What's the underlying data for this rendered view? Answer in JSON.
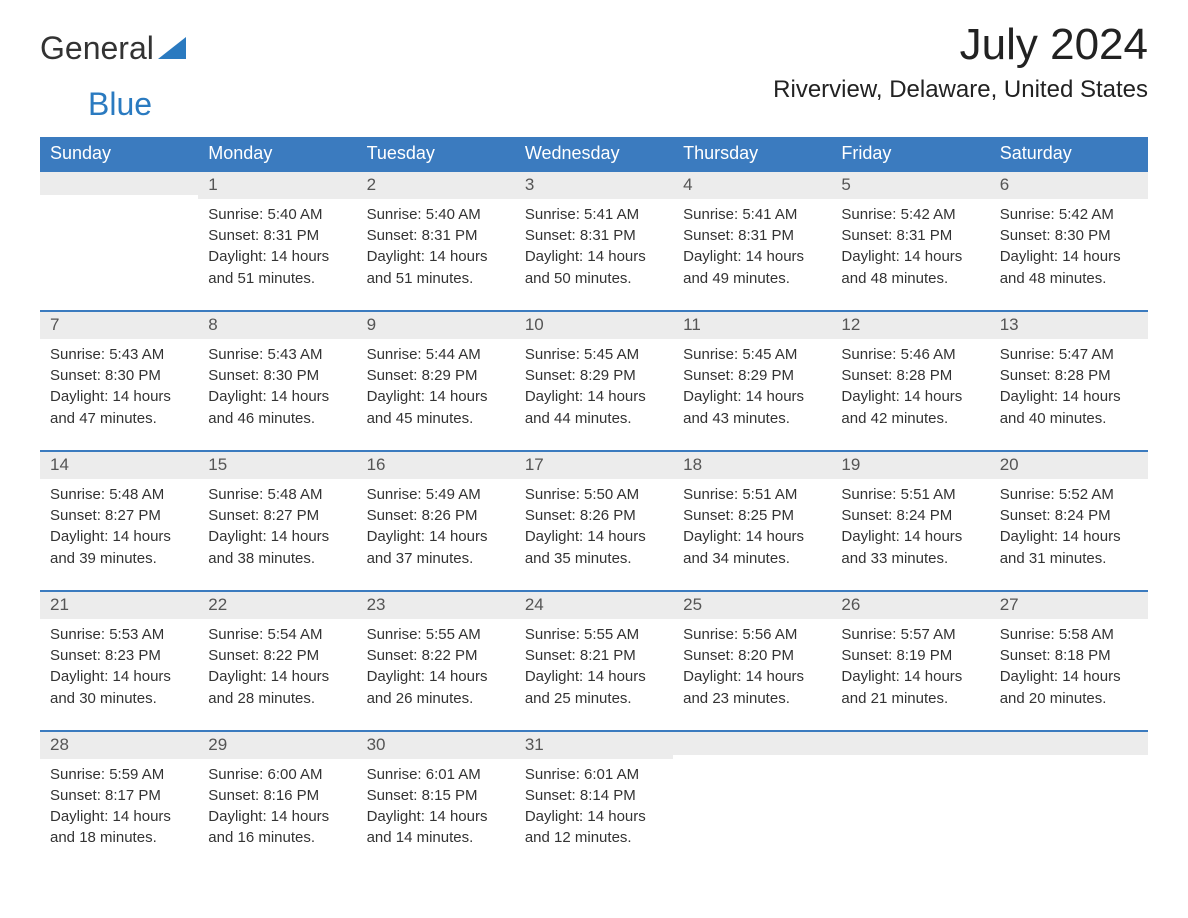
{
  "logo": {
    "word1": "General",
    "word2": "Blue",
    "color_primary": "#2a7ac0",
    "color_text": "#333333"
  },
  "month_title": "July 2024",
  "location": "Riverview, Delaware, United States",
  "colors": {
    "header_bg": "#3b7bbf",
    "header_text": "#ffffff",
    "daynum_bg": "#ececec",
    "daynum_border": "#3b7bbf",
    "body_text": "#333333",
    "background": "#ffffff"
  },
  "weekdays": [
    "Sunday",
    "Monday",
    "Tuesday",
    "Wednesday",
    "Thursday",
    "Friday",
    "Saturday"
  ],
  "weeks": [
    [
      null,
      {
        "n": "1",
        "sunrise": "Sunrise: 5:40 AM",
        "sunset": "Sunset: 8:31 PM",
        "day1": "Daylight: 14 hours",
        "day2": "and 51 minutes."
      },
      {
        "n": "2",
        "sunrise": "Sunrise: 5:40 AM",
        "sunset": "Sunset: 8:31 PM",
        "day1": "Daylight: 14 hours",
        "day2": "and 51 minutes."
      },
      {
        "n": "3",
        "sunrise": "Sunrise: 5:41 AM",
        "sunset": "Sunset: 8:31 PM",
        "day1": "Daylight: 14 hours",
        "day2": "and 50 minutes."
      },
      {
        "n": "4",
        "sunrise": "Sunrise: 5:41 AM",
        "sunset": "Sunset: 8:31 PM",
        "day1": "Daylight: 14 hours",
        "day2": "and 49 minutes."
      },
      {
        "n": "5",
        "sunrise": "Sunrise: 5:42 AM",
        "sunset": "Sunset: 8:31 PM",
        "day1": "Daylight: 14 hours",
        "day2": "and 48 minutes."
      },
      {
        "n": "6",
        "sunrise": "Sunrise: 5:42 AM",
        "sunset": "Sunset: 8:30 PM",
        "day1": "Daylight: 14 hours",
        "day2": "and 48 minutes."
      }
    ],
    [
      {
        "n": "7",
        "sunrise": "Sunrise: 5:43 AM",
        "sunset": "Sunset: 8:30 PM",
        "day1": "Daylight: 14 hours",
        "day2": "and 47 minutes."
      },
      {
        "n": "8",
        "sunrise": "Sunrise: 5:43 AM",
        "sunset": "Sunset: 8:30 PM",
        "day1": "Daylight: 14 hours",
        "day2": "and 46 minutes."
      },
      {
        "n": "9",
        "sunrise": "Sunrise: 5:44 AM",
        "sunset": "Sunset: 8:29 PM",
        "day1": "Daylight: 14 hours",
        "day2": "and 45 minutes."
      },
      {
        "n": "10",
        "sunrise": "Sunrise: 5:45 AM",
        "sunset": "Sunset: 8:29 PM",
        "day1": "Daylight: 14 hours",
        "day2": "and 44 minutes."
      },
      {
        "n": "11",
        "sunrise": "Sunrise: 5:45 AM",
        "sunset": "Sunset: 8:29 PM",
        "day1": "Daylight: 14 hours",
        "day2": "and 43 minutes."
      },
      {
        "n": "12",
        "sunrise": "Sunrise: 5:46 AM",
        "sunset": "Sunset: 8:28 PM",
        "day1": "Daylight: 14 hours",
        "day2": "and 42 minutes."
      },
      {
        "n": "13",
        "sunrise": "Sunrise: 5:47 AM",
        "sunset": "Sunset: 8:28 PM",
        "day1": "Daylight: 14 hours",
        "day2": "and 40 minutes."
      }
    ],
    [
      {
        "n": "14",
        "sunrise": "Sunrise: 5:48 AM",
        "sunset": "Sunset: 8:27 PM",
        "day1": "Daylight: 14 hours",
        "day2": "and 39 minutes."
      },
      {
        "n": "15",
        "sunrise": "Sunrise: 5:48 AM",
        "sunset": "Sunset: 8:27 PM",
        "day1": "Daylight: 14 hours",
        "day2": "and 38 minutes."
      },
      {
        "n": "16",
        "sunrise": "Sunrise: 5:49 AM",
        "sunset": "Sunset: 8:26 PM",
        "day1": "Daylight: 14 hours",
        "day2": "and 37 minutes."
      },
      {
        "n": "17",
        "sunrise": "Sunrise: 5:50 AM",
        "sunset": "Sunset: 8:26 PM",
        "day1": "Daylight: 14 hours",
        "day2": "and 35 minutes."
      },
      {
        "n": "18",
        "sunrise": "Sunrise: 5:51 AM",
        "sunset": "Sunset: 8:25 PM",
        "day1": "Daylight: 14 hours",
        "day2": "and 34 minutes."
      },
      {
        "n": "19",
        "sunrise": "Sunrise: 5:51 AM",
        "sunset": "Sunset: 8:24 PM",
        "day1": "Daylight: 14 hours",
        "day2": "and 33 minutes."
      },
      {
        "n": "20",
        "sunrise": "Sunrise: 5:52 AM",
        "sunset": "Sunset: 8:24 PM",
        "day1": "Daylight: 14 hours",
        "day2": "and 31 minutes."
      }
    ],
    [
      {
        "n": "21",
        "sunrise": "Sunrise: 5:53 AM",
        "sunset": "Sunset: 8:23 PM",
        "day1": "Daylight: 14 hours",
        "day2": "and 30 minutes."
      },
      {
        "n": "22",
        "sunrise": "Sunrise: 5:54 AM",
        "sunset": "Sunset: 8:22 PM",
        "day1": "Daylight: 14 hours",
        "day2": "and 28 minutes."
      },
      {
        "n": "23",
        "sunrise": "Sunrise: 5:55 AM",
        "sunset": "Sunset: 8:22 PM",
        "day1": "Daylight: 14 hours",
        "day2": "and 26 minutes."
      },
      {
        "n": "24",
        "sunrise": "Sunrise: 5:55 AM",
        "sunset": "Sunset: 8:21 PM",
        "day1": "Daylight: 14 hours",
        "day2": "and 25 minutes."
      },
      {
        "n": "25",
        "sunrise": "Sunrise: 5:56 AM",
        "sunset": "Sunset: 8:20 PM",
        "day1": "Daylight: 14 hours",
        "day2": "and 23 minutes."
      },
      {
        "n": "26",
        "sunrise": "Sunrise: 5:57 AM",
        "sunset": "Sunset: 8:19 PM",
        "day1": "Daylight: 14 hours",
        "day2": "and 21 minutes."
      },
      {
        "n": "27",
        "sunrise": "Sunrise: 5:58 AM",
        "sunset": "Sunset: 8:18 PM",
        "day1": "Daylight: 14 hours",
        "day2": "and 20 minutes."
      }
    ],
    [
      {
        "n": "28",
        "sunrise": "Sunrise: 5:59 AM",
        "sunset": "Sunset: 8:17 PM",
        "day1": "Daylight: 14 hours",
        "day2": "and 18 minutes."
      },
      {
        "n": "29",
        "sunrise": "Sunrise: 6:00 AM",
        "sunset": "Sunset: 8:16 PM",
        "day1": "Daylight: 14 hours",
        "day2": "and 16 minutes."
      },
      {
        "n": "30",
        "sunrise": "Sunrise: 6:01 AM",
        "sunset": "Sunset: 8:15 PM",
        "day1": "Daylight: 14 hours",
        "day2": "and 14 minutes."
      },
      {
        "n": "31",
        "sunrise": "Sunrise: 6:01 AM",
        "sunset": "Sunset: 8:14 PM",
        "day1": "Daylight: 14 hours",
        "day2": "and 12 minutes."
      },
      null,
      null,
      null
    ]
  ]
}
